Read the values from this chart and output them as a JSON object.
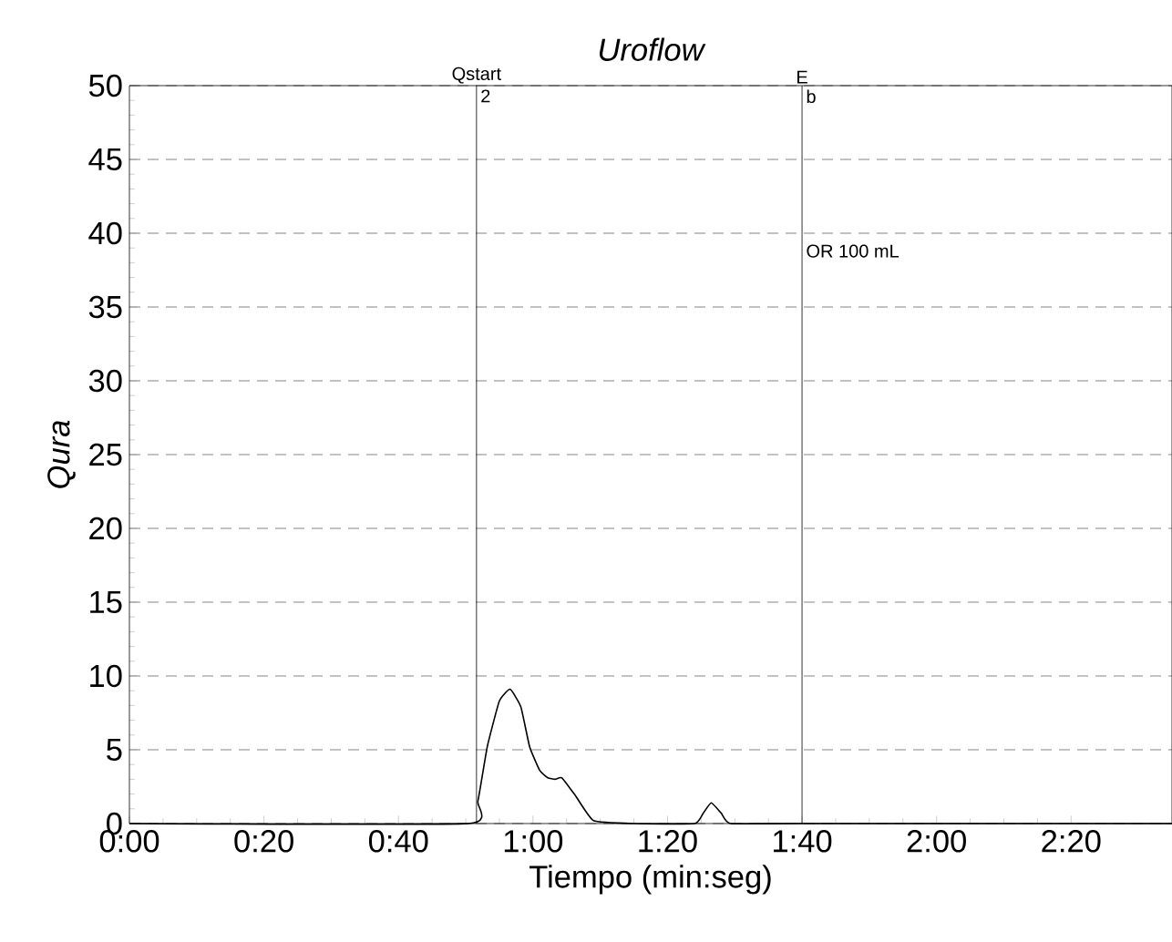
{
  "chart_data": {
    "type": "line",
    "title": "Uroflow",
    "xlabel": "Tiempo (min:seg)",
    "ylabel": "Qura",
    "xlim": [
      0,
      155
    ],
    "ylim": [
      0,
      50
    ],
    "xticks": [
      {
        "value": 0,
        "label": "0:00"
      },
      {
        "value": 20,
        "label": "0:20"
      },
      {
        "value": 40,
        "label": "0:40"
      },
      {
        "value": 60,
        "label": "1:00"
      },
      {
        "value": 80,
        "label": "1:20"
      },
      {
        "value": 100,
        "label": "1:40"
      },
      {
        "value": 120,
        "label": "2:00"
      },
      {
        "value": 140,
        "label": "2:20"
      }
    ],
    "yticks": [
      0,
      5,
      10,
      15,
      20,
      25,
      30,
      35,
      40,
      45,
      50
    ],
    "grid": "y",
    "color": "#000000",
    "x": [
      0,
      50.4,
      51.8,
      53.2,
      55,
      56.6,
      58.2,
      59.5,
      61,
      62.2,
      63.3,
      64.3,
      66.3,
      69,
      75,
      84,
      85.3,
      86.5,
      88,
      89.4,
      100,
      155
    ],
    "values": [
      0,
      0,
      1.5,
      5.2,
      8.3,
      9.1,
      7.9,
      5.2,
      3.6,
      3.1,
      3.0,
      3.1,
      1.9,
      0.2,
      0,
      0,
      0.7,
      1.4,
      0.7,
      0,
      0,
      0
    ],
    "ref_lines": [
      {
        "axis": "x",
        "value": 51.6,
        "label": "Qstart"
      },
      {
        "axis": "x",
        "value": 100,
        "label": "E"
      }
    ],
    "annotations": [
      "2",
      "b",
      "OR 100 mL"
    ]
  }
}
